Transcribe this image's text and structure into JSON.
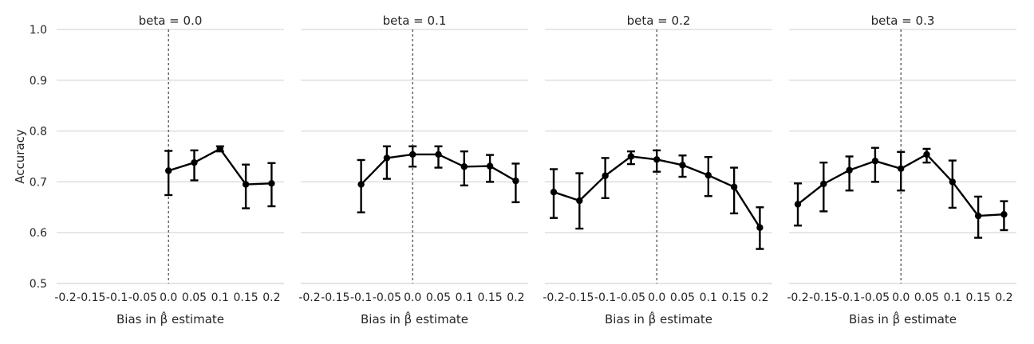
{
  "chart_data": {
    "type": "line",
    "ylabel": "Accuracy",
    "xlabel": "Bias in β̂ estimate",
    "ylim": [
      0.5,
      1.0
    ],
    "yticks": [
      "0.5",
      "0.6",
      "0.7",
      "0.8",
      "0.9",
      "1.0"
    ],
    "x_categories": [
      "-0.2",
      "-0.15",
      "-0.1",
      "-0.05",
      "0.0",
      "0.05",
      "0.1",
      "0.15",
      "0.2"
    ],
    "reference_line_x": "0.0",
    "grid": true,
    "line_color": "#000000",
    "panels": [
      {
        "title": "beta = 0.0",
        "points": [
          {
            "x": "0.0",
            "y": 0.722,
            "lo": 0.674,
            "hi": 0.761
          },
          {
            "x": "0.05",
            "y": 0.738,
            "lo": 0.703,
            "hi": 0.762
          },
          {
            "x": "0.1",
            "y": 0.765,
            "lo": 0.76,
            "hi": 0.77
          },
          {
            "x": "0.15",
            "y": 0.695,
            "lo": 0.648,
            "hi": 0.734
          },
          {
            "x": "0.2",
            "y": 0.697,
            "lo": 0.652,
            "hi": 0.737
          }
        ]
      },
      {
        "title": "beta = 0.1",
        "points": [
          {
            "x": "-0.1",
            "y": 0.695,
            "lo": 0.64,
            "hi": 0.743
          },
          {
            "x": "-0.05",
            "y": 0.747,
            "lo": 0.706,
            "hi": 0.77
          },
          {
            "x": "0.0",
            "y": 0.754,
            "lo": 0.73,
            "hi": 0.77
          },
          {
            "x": "0.05",
            "y": 0.754,
            "lo": 0.728,
            "hi": 0.77
          },
          {
            "x": "0.1",
            "y": 0.73,
            "lo": 0.693,
            "hi": 0.76
          },
          {
            "x": "0.15",
            "y": 0.731,
            "lo": 0.7,
            "hi": 0.753
          },
          {
            "x": "0.2",
            "y": 0.702,
            "lo": 0.66,
            "hi": 0.736
          }
        ]
      },
      {
        "title": "beta = 0.2",
        "points": [
          {
            "x": "-0.2",
            "y": 0.68,
            "lo": 0.629,
            "hi": 0.725
          },
          {
            "x": "-0.15",
            "y": 0.663,
            "lo": 0.608,
            "hi": 0.717
          },
          {
            "x": "-0.1",
            "y": 0.712,
            "lo": 0.668,
            "hi": 0.747
          },
          {
            "x": "-0.05",
            "y": 0.75,
            "lo": 0.735,
            "hi": 0.76
          },
          {
            "x": "0.0",
            "y": 0.744,
            "lo": 0.72,
            "hi": 0.762
          },
          {
            "x": "0.05",
            "y": 0.733,
            "lo": 0.71,
            "hi": 0.752
          },
          {
            "x": "0.1",
            "y": 0.713,
            "lo": 0.672,
            "hi": 0.749
          },
          {
            "x": "0.15",
            "y": 0.69,
            "lo": 0.638,
            "hi": 0.728
          },
          {
            "x": "0.2",
            "y": 0.61,
            "lo": 0.568,
            "hi": 0.65
          }
        ]
      },
      {
        "title": "beta = 0.3",
        "points": [
          {
            "x": "-0.2",
            "y": 0.656,
            "lo": 0.614,
            "hi": 0.697
          },
          {
            "x": "-0.15",
            "y": 0.696,
            "lo": 0.642,
            "hi": 0.738
          },
          {
            "x": "-0.1",
            "y": 0.723,
            "lo": 0.683,
            "hi": 0.75
          },
          {
            "x": "-0.05",
            "y": 0.741,
            "lo": 0.7,
            "hi": 0.767
          },
          {
            "x": "0.0",
            "y": 0.726,
            "lo": 0.683,
            "hi": 0.759
          },
          {
            "x": "0.05",
            "y": 0.754,
            "lo": 0.738,
            "hi": 0.765
          },
          {
            "x": "0.1",
            "y": 0.7,
            "lo": 0.649,
            "hi": 0.742
          },
          {
            "x": "0.15",
            "y": 0.633,
            "lo": 0.59,
            "hi": 0.671
          },
          {
            "x": "0.2",
            "y": 0.636,
            "lo": 0.605,
            "hi": 0.662
          }
        ]
      }
    ]
  }
}
